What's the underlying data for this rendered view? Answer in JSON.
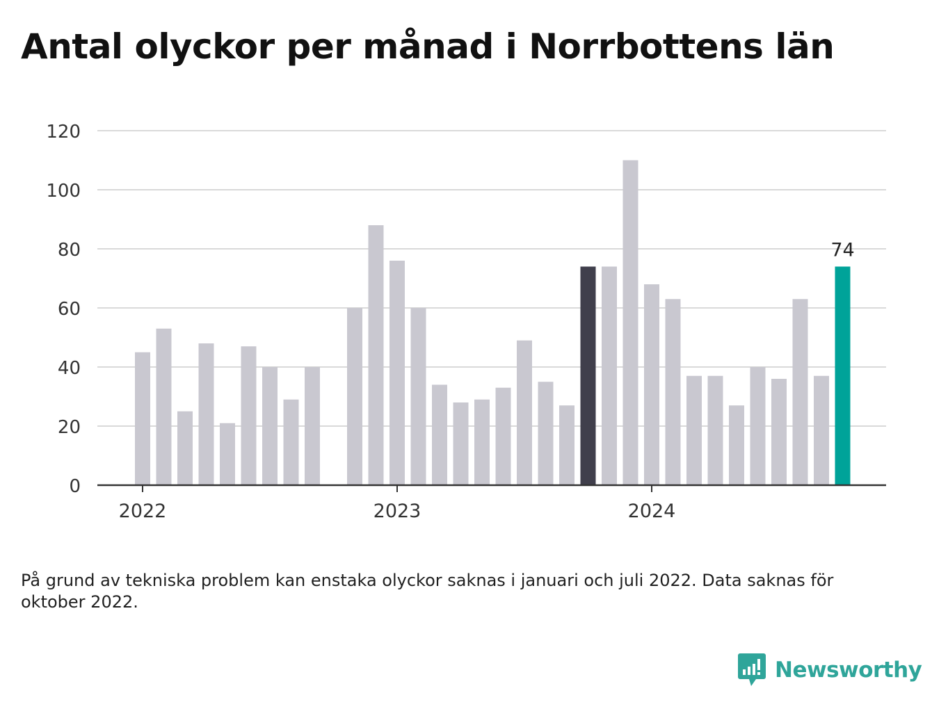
{
  "title": "Antal olyckor per månad i Norrbottens län",
  "footnote": "På grund av tekniska problem kan enstaka olyckor saknas i januari och juli 2022. Data saknas för oktober 2022.",
  "brand": {
    "name": "Newsworthy",
    "icon": "newsworthy-logo-icon",
    "color": "#2fa59a"
  },
  "chart_data": {
    "type": "bar",
    "title": "Antal olyckor per månad i Norrbottens län",
    "xlabel": "",
    "ylabel": "",
    "ylim": [
      0,
      120
    ],
    "yticks": [
      "0",
      "20",
      "40",
      "60",
      "80",
      "100",
      "120"
    ],
    "grid": true,
    "categories": [
      "2022-01",
      "2022-02",
      "2022-03",
      "2022-04",
      "2022-05",
      "2022-06",
      "2022-07",
      "2022-08",
      "2022-09",
      "2022-10",
      "2022-11",
      "2022-12",
      "2023-01",
      "2023-02",
      "2023-03",
      "2023-04",
      "2023-05",
      "2023-06",
      "2023-07",
      "2023-08",
      "2023-09",
      "2023-10",
      "2023-11",
      "2023-12",
      "2024-01",
      "2024-02",
      "2024-03",
      "2024-04",
      "2024-05",
      "2024-06",
      "2024-07",
      "2024-08",
      "2024-09",
      "2024-10"
    ],
    "values": [
      45,
      53,
      25,
      48,
      21,
      47,
      40,
      29,
      40,
      null,
      60,
      88,
      76,
      60,
      34,
      28,
      29,
      33,
      49,
      35,
      27,
      74,
      74,
      110,
      68,
      63,
      37,
      37,
      27,
      40,
      36,
      63,
      37,
      74
    ],
    "x_tick_labels": [
      {
        "label": "2022",
        "category": "2022-01"
      },
      {
        "label": "2023",
        "category": "2023-01"
      },
      {
        "label": "2024",
        "category": "2024-01"
      }
    ],
    "highlight": {
      "category": "2023-10",
      "color": "#403f4c"
    },
    "latest": {
      "category": "2024-10",
      "color": "#00a399",
      "label": "74"
    },
    "colors": {
      "bar": "#c9c8d0",
      "grid": "#d9d9d9",
      "axis": "#333333"
    }
  }
}
